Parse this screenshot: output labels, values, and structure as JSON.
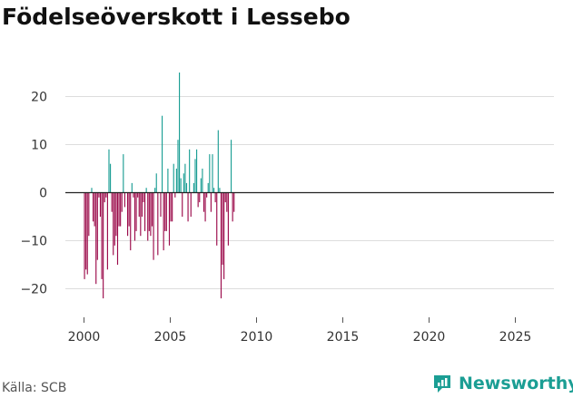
{
  "header": {
    "title": "Födelseöverskott i Lessebo"
  },
  "footer": {
    "source": "Källa: SCB",
    "brand": "Newsworthy"
  },
  "colors": {
    "positive": "#1b9e94",
    "negative": "#9b0a4a",
    "grid": "#dddddd",
    "zero_line": "#222222",
    "axis_text": "#333333",
    "brand": "#1b9e94"
  },
  "chart_data": {
    "type": "bar",
    "title": "Födelseöverskott i Lessebo",
    "xlabel": "",
    "ylabel": "",
    "ylim": [
      -25,
      25
    ],
    "yticks": [
      -20,
      -10,
      0,
      10,
      20
    ],
    "xticks": [
      "2000",
      "2005",
      "2010",
      "2015",
      "2020",
      "2025"
    ],
    "x_start": 2000,
    "x_end": 2026,
    "bars_per_year": 12,
    "grid": true,
    "values": [
      -18,
      -16,
      -17,
      -9,
      0,
      1,
      -6,
      -7,
      -19,
      -14,
      -1,
      -5,
      -18,
      -22,
      -2,
      -1,
      -16,
      9,
      6,
      -4,
      -13,
      -11,
      -9,
      -15,
      -7,
      -7,
      -4,
      8,
      -3,
      0,
      -9,
      -7,
      -12,
      2,
      -1,
      -10,
      -8,
      -1,
      -5,
      -9,
      -5,
      -2,
      -8,
      1,
      -10,
      -8,
      -9,
      -7,
      -14,
      1,
      4,
      -13,
      0,
      -5,
      16,
      -12,
      -8,
      -8,
      5,
      -11,
      -6,
      -6,
      6,
      -1,
      5,
      11,
      25,
      3,
      -5,
      4,
      6,
      2,
      -6,
      9,
      -5,
      0,
      2,
      7,
      9,
      -3,
      -2,
      3,
      5,
      -4,
      -6,
      -1,
      2,
      8,
      -4,
      8,
      1,
      -2,
      -11,
      13,
      1,
      -22,
      -15,
      -18,
      -2,
      -4,
      -11,
      0,
      11,
      -6,
      -4
    ]
  }
}
